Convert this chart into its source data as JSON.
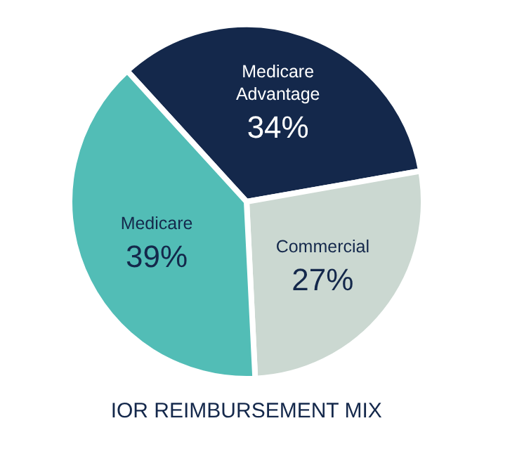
{
  "chart_data": {
    "type": "pie",
    "title": "IOR REIMBURSEMENT MIX",
    "categories": [
      "Medicare Advantage",
      "Commercial",
      "Medicare"
    ],
    "values": [
      34,
      27,
      39
    ],
    "colors": [
      "#14284b",
      "#cbd8d1",
      "#52bdb6"
    ],
    "value_labels": [
      "34%",
      "27%",
      "39%"
    ]
  }
}
